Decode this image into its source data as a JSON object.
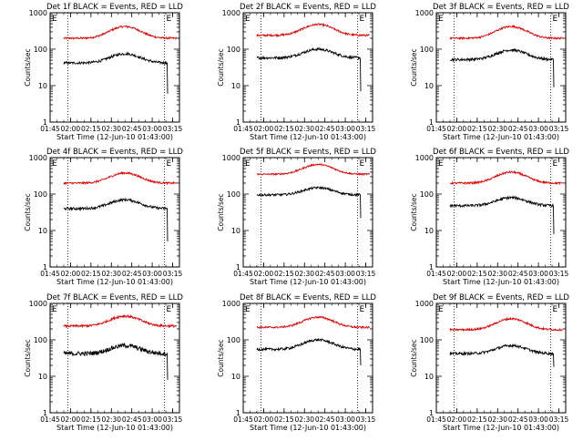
{
  "chart_data": [
    {
      "type": "line",
      "title": "Det 1f BLACK = Events, RED = LLD",
      "xlabel": "Start Time (12-Jun-10 01:43:00)",
      "ylabel": "Counts/sec",
      "marker": "E",
      "yscale": "log",
      "ylim": [
        1,
        1000
      ],
      "xlim": [
        "01:45",
        "03:20"
      ],
      "x_ticks": [
        "01:45",
        "02:00",
        "02:15",
        "02:30",
        "02:45",
        "03:00",
        "03:15"
      ],
      "y_ticks": [
        "1",
        "10",
        "100",
        "1000"
      ],
      "vlines": [
        "01:58",
        "03:09"
      ],
      "series": [
        {
          "color": "#e00000",
          "base": 200,
          "peak": 420,
          "noise": 0.06
        },
        {
          "color": "#000000",
          "base": 42,
          "peak": 75,
          "noise": 0.08,
          "end_drop": 6
        }
      ]
    },
    {
      "type": "line",
      "title": "Det 2f BLACK = Events, RED = LLD",
      "xlabel": "Start Time (12-Jun-10 01:43:00)",
      "ylabel": "Counts/sec",
      "marker": "E",
      "yscale": "log",
      "ylim": [
        1,
        1000
      ],
      "xlim": [
        "01:45",
        "03:20"
      ],
      "x_ticks": [
        "01:45",
        "02:00",
        "02:15",
        "02:30",
        "02:45",
        "03:00",
        "03:15"
      ],
      "y_ticks": [
        "1",
        "10",
        "100",
        "1000"
      ],
      "vlines": [
        "01:58",
        "03:09"
      ],
      "series": [
        {
          "color": "#e00000",
          "base": 240,
          "peak": 480,
          "noise": 0.06
        },
        {
          "color": "#000000",
          "base": 58,
          "peak": 100,
          "noise": 0.08,
          "end_drop": 7
        }
      ]
    },
    {
      "type": "line",
      "title": "Det 3f BLACK = Events, RED = LLD",
      "xlabel": "Start Time (12-Jun-10 01:43:00)",
      "ylabel": "Counts/sec",
      "marker": "E",
      "yscale": "log",
      "ylim": [
        1,
        1000
      ],
      "xlim": [
        "01:45",
        "03:20"
      ],
      "x_ticks": [
        "01:45",
        "02:00",
        "02:15",
        "02:30",
        "02:45",
        "03:00",
        "03:15"
      ],
      "y_ticks": [
        "1",
        "10",
        "100",
        "1000"
      ],
      "vlines": [
        "01:58",
        "03:09"
      ],
      "series": [
        {
          "color": "#e00000",
          "base": 200,
          "peak": 420,
          "noise": 0.06
        },
        {
          "color": "#000000",
          "base": 52,
          "peak": 95,
          "noise": 0.08,
          "end_drop": 9
        }
      ]
    },
    {
      "type": "line",
      "title": "Det 4f BLACK = Events, RED = LLD",
      "xlabel": "Start Time (12-Jun-10 01:43:00)",
      "ylabel": "Counts/sec",
      "marker": "E",
      "yscale": "log",
      "ylim": [
        1,
        1000
      ],
      "xlim": [
        "01:45",
        "03:20"
      ],
      "x_ticks": [
        "01:45",
        "02:00",
        "02:15",
        "02:30",
        "02:45",
        "03:00",
        "03:15"
      ],
      "y_ticks": [
        "1",
        "10",
        "100",
        "1000"
      ],
      "vlines": [
        "01:58",
        "03:09"
      ],
      "series": [
        {
          "color": "#e00000",
          "base": 200,
          "peak": 380,
          "noise": 0.06
        },
        {
          "color": "#000000",
          "base": 40,
          "peak": 70,
          "noise": 0.08,
          "end_drop": 5
        }
      ]
    },
    {
      "type": "line",
      "title": "Det 5f BLACK = Events, RED = LLD",
      "xlabel": "Start Time (12-Jun-10 01:43:00)",
      "ylabel": "Counts/sec",
      "marker": "E",
      "yscale": "log",
      "ylim": [
        1,
        1000
      ],
      "xlim": [
        "01:45",
        "03:20"
      ],
      "x_ticks": [
        "01:45",
        "02:00",
        "02:15",
        "02:30",
        "02:45",
        "03:00",
        "03:15"
      ],
      "y_ticks": [
        "1",
        "10",
        "100",
        "1000"
      ],
      "vlines": [
        "01:58",
        "03:09"
      ],
      "series": [
        {
          "color": "#e00000",
          "base": 350,
          "peak": 650,
          "noise": 0.05
        },
        {
          "color": "#000000",
          "base": 95,
          "peak": 150,
          "noise": 0.07,
          "end_drop": 22
        }
      ]
    },
    {
      "type": "line",
      "title": "Det 6f BLACK = Events, RED = LLD",
      "xlabel": "Start Time (12-Jun-10 01:43:00)",
      "ylabel": "Counts/sec",
      "marker": "E",
      "yscale": "log",
      "ylim": [
        1,
        1000
      ],
      "xlim": [
        "01:45",
        "03:20"
      ],
      "x_ticks": [
        "01:45",
        "02:00",
        "02:15",
        "02:30",
        "02:45",
        "03:00",
        "03:15"
      ],
      "y_ticks": [
        "1",
        "10",
        "100",
        "1000"
      ],
      "vlines": [
        "01:58",
        "03:09"
      ],
      "series": [
        {
          "color": "#e00000",
          "base": 200,
          "peak": 400,
          "noise": 0.06
        },
        {
          "color": "#000000",
          "base": 48,
          "peak": 80,
          "noise": 0.08,
          "end_drop": 8
        }
      ]
    },
    {
      "type": "line",
      "title": "Det 7f BLACK = Events, RED = LLD",
      "xlabel": "Start Time (12-Jun-10 01:43:00)",
      "ylabel": "Counts/sec",
      "marker": "E",
      "yscale": "log",
      "ylim": [
        1,
        1000
      ],
      "xlim": [
        "01:45",
        "03:20"
      ],
      "x_ticks": [
        "01:45",
        "02:00",
        "02:15",
        "02:30",
        "02:45",
        "03:00",
        "03:15"
      ],
      "y_ticks": [
        "1",
        "10",
        "100",
        "1000"
      ],
      "vlines": [
        "01:58",
        "03:09"
      ],
      "series": [
        {
          "color": "#e00000",
          "base": 240,
          "peak": 450,
          "noise": 0.07
        },
        {
          "color": "#000000",
          "base": 42,
          "peak": 70,
          "noise": 0.14,
          "end_drop": 8
        }
      ]
    },
    {
      "type": "line",
      "title": "Det 8f BLACK = Events, RED = LLD",
      "xlabel": "Start Time (12-Jun-10 01:43:00)",
      "ylabel": "Counts/sec",
      "marker": "E",
      "yscale": "log",
      "ylim": [
        1,
        1000
      ],
      "xlim": [
        "01:45",
        "03:20"
      ],
      "x_ticks": [
        "01:45",
        "02:00",
        "02:15",
        "02:30",
        "02:45",
        "03:00",
        "03:15"
      ],
      "y_ticks": [
        "1",
        "10",
        "100",
        "1000"
      ],
      "vlines": [
        "01:58",
        "03:09"
      ],
      "series": [
        {
          "color": "#e00000",
          "base": 220,
          "peak": 420,
          "noise": 0.06
        },
        {
          "color": "#000000",
          "base": 55,
          "peak": 100,
          "noise": 0.08,
          "end_drop": 20
        }
      ]
    },
    {
      "type": "line",
      "title": "Det 9f BLACK = Events, RED = LLD",
      "xlabel": "Start Time (12-Jun-10 01:43:00)",
      "ylabel": "Counts/sec",
      "marker": "E",
      "yscale": "log",
      "ylim": [
        1,
        1000
      ],
      "xlim": [
        "01:45",
        "03:20"
      ],
      "x_ticks": [
        "01:45",
        "02:00",
        "02:15",
        "02:30",
        "02:45",
        "03:00",
        "03:15"
      ],
      "y_ticks": [
        "1",
        "10",
        "100",
        "1000"
      ],
      "vlines": [
        "01:58",
        "03:09"
      ],
      "series": [
        {
          "color": "#e00000",
          "base": 190,
          "peak": 380,
          "noise": 0.06
        },
        {
          "color": "#000000",
          "base": 42,
          "peak": 70,
          "noise": 0.08,
          "end_drop": 18
        }
      ]
    }
  ]
}
